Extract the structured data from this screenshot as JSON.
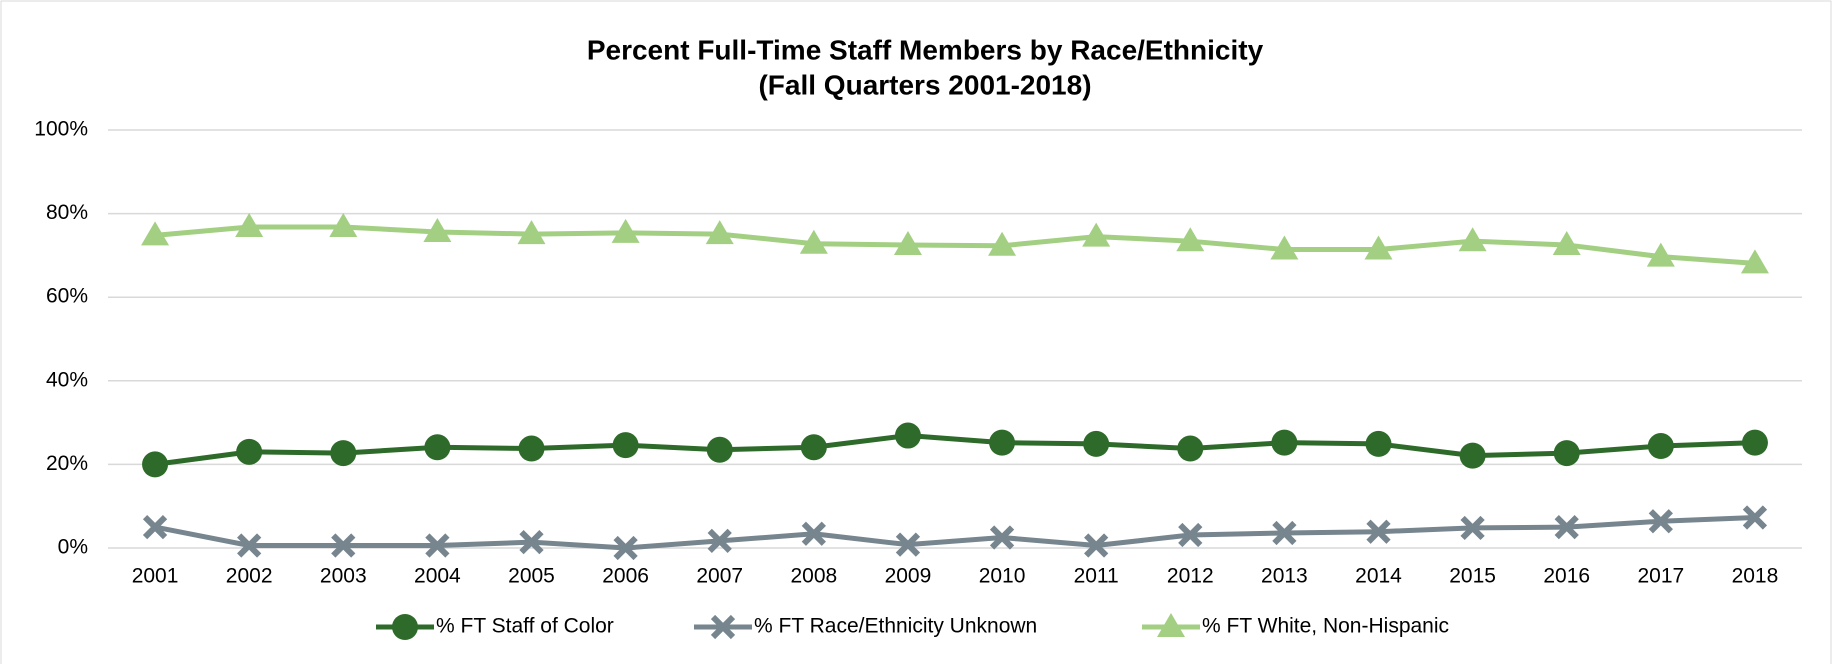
{
  "chart_data": {
    "type": "line",
    "title": "Percent Full-Time Staff Members by Race/Ethnicity",
    "subtitle": "(Fall Quarters 2001-2018)",
    "categories": [
      "2001",
      "2002",
      "2003",
      "2004",
      "2005",
      "2006",
      "2007",
      "2008",
      "2009",
      "2010",
      "2011",
      "2012",
      "2013",
      "2014",
      "2015",
      "2016",
      "2017",
      "2018"
    ],
    "series": [
      {
        "name": "% FT Staff of Color",
        "color": "#2e6b2a",
        "marker": "circle",
        "values": [
          20.0,
          23.0,
          22.7,
          24.1,
          23.8,
          24.6,
          23.5,
          24.1,
          26.9,
          25.2,
          24.9,
          23.8,
          25.2,
          24.9,
          22.1,
          22.7,
          24.4,
          25.2
        ]
      },
      {
        "name": "% FT Race/Ethnicity Unknown",
        "color": "#77858f",
        "marker": "x",
        "values": [
          5.0,
          0.6,
          0.6,
          0.6,
          1.4,
          0.0,
          1.7,
          3.4,
          0.8,
          2.5,
          0.6,
          3.1,
          3.6,
          3.9,
          4.8,
          5.0,
          6.4,
          7.3
        ]
      },
      {
        "name": "% FT White, Non-Hispanic",
        "color": "#a3cf83",
        "marker": "triangle",
        "values": [
          74.8,
          76.8,
          76.8,
          75.6,
          75.1,
          75.4,
          75.1,
          72.8,
          72.5,
          72.3,
          74.5,
          73.4,
          71.4,
          71.4,
          73.4,
          72.5,
          69.7,
          68.1
        ]
      }
    ],
    "ylim": [
      0,
      100
    ],
    "yticks": [
      {
        "value": 0,
        "label": "0%"
      },
      {
        "value": 20,
        "label": "20%"
      },
      {
        "value": 40,
        "label": "40%"
      },
      {
        "value": 60,
        "label": "60%"
      },
      {
        "value": 80,
        "label": "80%"
      },
      {
        "value": 100,
        "label": "100%"
      }
    ],
    "grid": true,
    "legend": "bottom"
  }
}
